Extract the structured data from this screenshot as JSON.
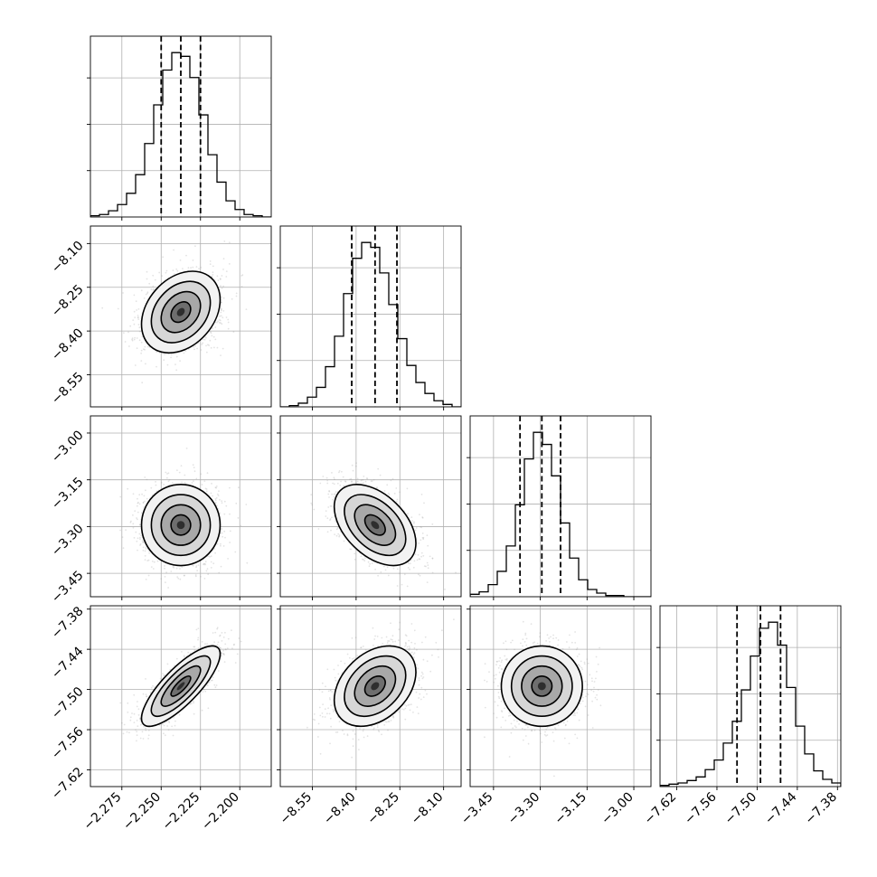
{
  "chart_data": {
    "type": "corner",
    "grid": true,
    "colors": {
      "line": "#000000",
      "scatter": "#9a9a9a",
      "grid": "#b0b0b0"
    },
    "parameters": [
      {
        "range": [
          -2.295,
          -2.18
        ],
        "ticks": [
          -2.275,
          -2.25,
          -2.225,
          -2.2
        ],
        "tick_labels": [
          "−2.275",
          "−2.250",
          "−2.225",
          "−2.200"
        ],
        "mean": -2.2375,
        "sd": 0.0125,
        "quantiles": [
          -2.25,
          -2.2375,
          -2.225
        ],
        "hist_counts": [
          1,
          2,
          5,
          10,
          19,
          34,
          59,
          90,
          118,
          132,
          129,
          112,
          82,
          50,
          28,
          13,
          6,
          2,
          1,
          0
        ]
      },
      {
        "range": [
          -8.66,
          -8.04
        ],
        "ticks": [
          -8.55,
          -8.4,
          -8.25,
          -8.1
        ],
        "tick_labels": [
          "−8.55",
          "−8.40",
          "−8.25",
          "−8.10"
        ],
        "mean": -8.335,
        "sd": 0.07,
        "quantiles": [
          -8.415,
          -8.335,
          -8.26
        ],
        "hist_counts": [
          0,
          1,
          3,
          8,
          16,
          33,
          58,
          93,
          122,
          135,
          131,
          110,
          84,
          56,
          34,
          20,
          11,
          5,
          2,
          0
        ]
      },
      {
        "range": [
          -3.525,
          -2.945
        ],
        "ticks": [
          -3.45,
          -3.3,
          -3.15,
          -3.0
        ],
        "tick_labels": [
          "−3.45",
          "−3.30",
          "−3.15",
          "−3.00"
        ],
        "mean": -3.295,
        "sd": 0.065,
        "quantiles": [
          -3.365,
          -3.295,
          -3.235
        ],
        "hist_counts": [
          2,
          4,
          10,
          21,
          42,
          76,
          114,
          136,
          126,
          100,
          61,
          32,
          14,
          6,
          3,
          1,
          1,
          0,
          0,
          0
        ]
      },
      {
        "range": [
          -7.645,
          -7.375
        ],
        "ticks": [
          -7.62,
          -7.56,
          -7.5,
          -7.44,
          -7.38
        ],
        "tick_labels": [
          "−7.62",
          "−7.56",
          "−7.50",
          "−7.44",
          "−7.38"
        ],
        "mean": -7.495,
        "sd": 0.03,
        "quantiles": [
          -7.53,
          -7.495,
          -7.465
        ],
        "hist_counts": [
          1,
          2,
          3,
          5,
          8,
          14,
          22,
          36,
          54,
          80,
          108,
          131,
          136,
          117,
          82,
          50,
          27,
          13,
          6,
          3
        ]
      }
    ],
    "pair_correlations": {
      "1,0": 0.3,
      "2,0": 0.0,
      "2,1": -0.45,
      "3,0": 0.8,
      "3,1": 0.35,
      "3,2": 0.0
    }
  }
}
